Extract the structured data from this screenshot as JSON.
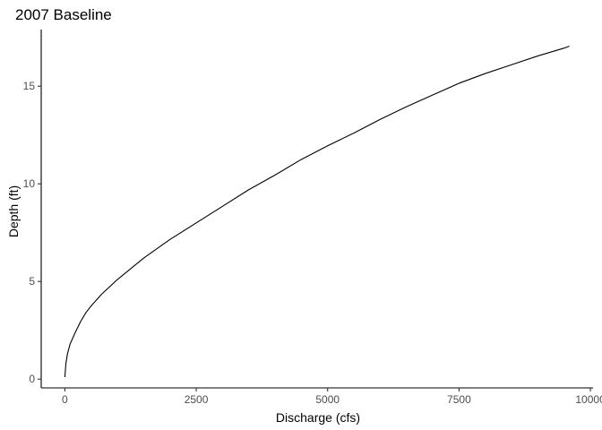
{
  "chart_data": {
    "type": "line",
    "title": "2007 Baseline",
    "xlabel": "Discharge (cfs)",
    "ylabel": "Depth (ft)",
    "xlim": [
      -450,
      10050
    ],
    "ylim": [
      -0.45,
      17.9
    ],
    "xticks": [
      0,
      2500,
      5000,
      7500,
      10000
    ],
    "xtick_labels": [
      "0",
      "2500",
      "5000",
      "7500",
      "10000"
    ],
    "yticks": [
      0,
      5,
      10,
      15
    ],
    "ytick_labels": [
      "0",
      "5",
      "10",
      "15"
    ],
    "grid": false,
    "legend": "none",
    "series": [
      {
        "color": "#000000",
        "x": [
          0,
          20,
          50,
          100,
          200,
          300,
          400,
          500,
          700,
          1000,
          1500,
          2000,
          2500,
          3000,
          3500,
          4000,
          4500,
          5000,
          5500,
          6000,
          6500,
          7000,
          7500,
          8000,
          8500,
          9000,
          9500,
          9600
        ],
        "y": [
          0.1,
          0.8,
          1.3,
          1.8,
          2.4,
          2.95,
          3.4,
          3.75,
          4.35,
          5.1,
          6.2,
          7.15,
          8.0,
          8.85,
          9.7,
          10.45,
          11.25,
          11.95,
          12.6,
          13.3,
          13.95,
          14.55,
          15.15,
          15.65,
          16.1,
          16.55,
          16.95,
          17.05
        ]
      }
    ]
  }
}
